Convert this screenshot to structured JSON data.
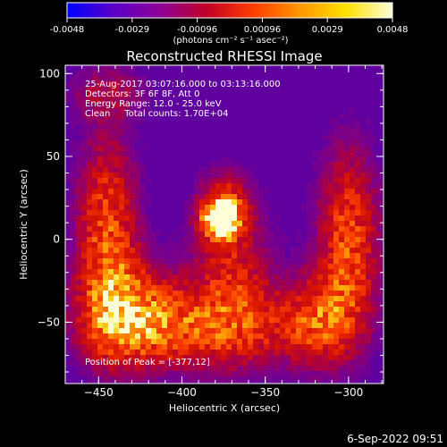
{
  "colorbar": {
    "ticks": [
      "-0.0048",
      "-0.0029",
      "-0.00096",
      "0.00096",
      "0.0029",
      "0.0048"
    ],
    "units": "(photons cm⁻² s⁻¹ asec⁻²)",
    "colors": [
      "#0000ff",
      "#5a00c8",
      "#8e0096",
      "#c00028",
      "#ff3c00",
      "#ff9600",
      "#ffe000",
      "#ffffd8"
    ]
  },
  "chart_data": {
    "type": "heatmap",
    "title": "Reconstructed RHESSI Image",
    "xlabel": "Heliocentric X (arcsec)",
    "ylabel": "Heliocentric Y (arcsec)",
    "xlim": [
      -470,
      -279
    ],
    "ylim": [
      -87,
      105
    ],
    "x_ticks": [
      -450,
      -400,
      -350,
      -300
    ],
    "y_ticks": [
      -50,
      0,
      50,
      100
    ],
    "peak": {
      "x": -377,
      "y": 12
    },
    "info_lines": [
      "25-Aug-2017 03:07:16.000 to 03:13:16.000",
      "Detectors: 3F 6F 8F, Att 0",
      "Energy Range: 12.0 - 25.0 keV",
      "Clean     Total counts: 1.70E+04"
    ],
    "peak_label": "Position of Peak = [-377,12]",
    "background_color": "#5f009f"
  },
  "footer": {
    "timestamp": "6-Sep-2022 09:51"
  }
}
